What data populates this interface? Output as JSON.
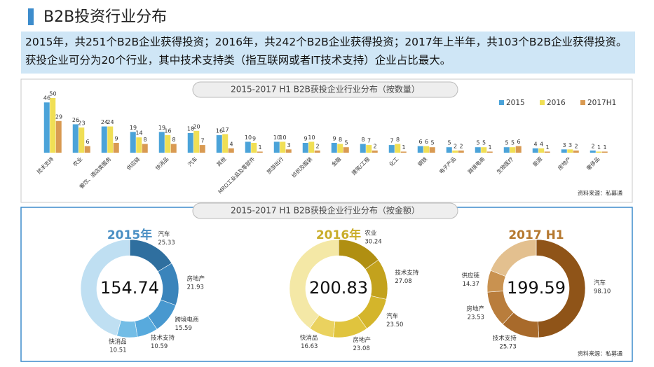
{
  "header": {
    "title": "B2B投资行业分布",
    "summary": "2015年，共251个B2B企业获得投资；2016年，共242个B2B企业获得投资；2017年上半年，共103个B2B企业获得投资。获投企业可分为20个行业，其中技术支持类（指互联网或者IT技术支持）企业占比最大。"
  },
  "amount_section": {
    "title": "2015-2017 H1 B2B获投企业行业分布（按金额）",
    "source": "资料来源：私募通"
  },
  "chart_data": [
    {
      "type": "bar",
      "title": "2015-2017 H1 B2B获投企业行业分布（按数量）",
      "source": "资料来源：私募通",
      "legend": "top-right",
      "categories": [
        "技术支持",
        "农业",
        "餐饮、酒店类服务",
        "供应链",
        "快消品",
        "汽车",
        "其他",
        "MRO工业品及零部件",
        "旅游出行",
        "纺织及服装",
        "金融",
        "建筑/工程",
        "化工",
        "钢铁",
        "电子产品",
        "跨境电商",
        "生物医疗",
        "能源",
        "房地产",
        "奢侈品"
      ],
      "series": [
        {
          "name": "2015",
          "color": "#4ba3d9",
          "values": [
            46,
            26,
            24,
            19,
            19,
            18,
            16,
            10,
            10,
            9,
            9,
            8,
            7,
            6,
            5,
            5,
            5,
            4,
            3,
            2
          ]
        },
        {
          "name": "2016",
          "color": "#f0df55",
          "values": [
            50,
            23,
            24,
            14,
            16,
            20,
            17,
            9,
            10,
            10,
            8,
            7,
            8,
            6,
            2,
            5,
            5,
            4,
            3,
            1
          ]
        },
        {
          "name": "2017H1",
          "color": "#d99a52",
          "values": [
            29,
            6,
            9,
            8,
            8,
            7,
            4,
            1,
            3,
            2,
            5,
            2,
            1,
            5,
            2,
            1,
            6,
            1,
            2,
            1
          ]
        }
      ]
    },
    {
      "type": "donut",
      "title": "2015年",
      "total": 154.74,
      "title_color": "#4a8fc4",
      "categories": [
        "汽车",
        "房地产",
        "跨境电商",
        "技术支持",
        "快消品"
      ],
      "values": [
        25.33,
        21.93,
        15.59,
        10.59,
        10.51
      ],
      "colors": [
        "#2f6f9f",
        "#3a84bb",
        "#4898cf",
        "#58aadd",
        "#73bde6"
      ],
      "other_color": "#bfdff2"
    },
    {
      "type": "donut",
      "title": "2016年",
      "total": 200.83,
      "title_color": "#c9ad2a",
      "categories": [
        "农业",
        "技术支持",
        "汽车",
        "房地产",
        "快消品"
      ],
      "values": [
        30.24,
        27.08,
        23.5,
        23.08,
        16.63
      ],
      "value_labels": [
        "30.24",
        "27.08",
        "23.50",
        "23.08",
        "16.63"
      ],
      "colors": [
        "#b08f12",
        "#c3a21d",
        "#d4b52b",
        "#e0c43e",
        "#ead25f"
      ],
      "other_color": "#f4e8a6"
    },
    {
      "type": "donut",
      "title": "2017 H1",
      "total": 199.59,
      "title_color": "#b5782f",
      "categories": [
        "汽车",
        "技术支持",
        "房地产",
        "供应链"
      ],
      "values": [
        98.1,
        25.73,
        23.53,
        14.37
      ],
      "value_labels": [
        "98.10",
        "25.73",
        "23.53",
        "14.37"
      ],
      "colors": [
        "#8f5418",
        "#a86a2b",
        "#b97d3c",
        "#c99250"
      ],
      "other_color": "#e3c08f"
    }
  ]
}
